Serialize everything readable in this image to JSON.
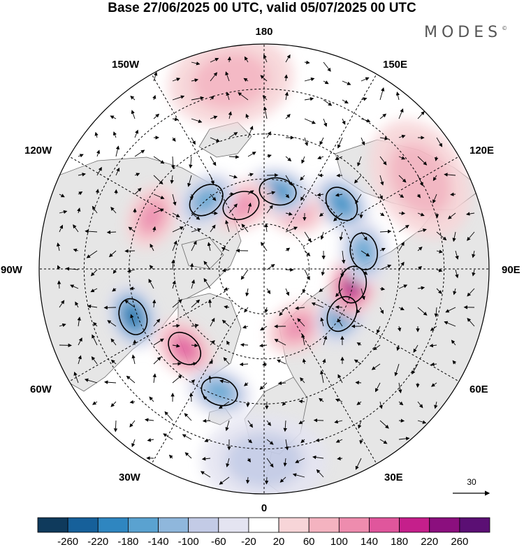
{
  "title": "Base 27/06/2025 00 UTC, valid 05/07/2025 00 UTC",
  "brand": "MODES",
  "brand_mark": "©",
  "longitude_labels": {
    "top": "180",
    "bottom": "0",
    "left": "90W",
    "right": "90E",
    "upper_left": "150W",
    "upper_left2": "120W",
    "upper_right": "150E",
    "upper_right2": "120E",
    "lower_left": "60W",
    "lower_left2": "30W",
    "lower_right": "60E",
    "lower_right2": "30E"
  },
  "vector_reference": "30",
  "colorbar": {
    "labels": [
      "-260",
      "-220",
      "-180",
      "-140",
      "-100",
      "-60",
      "-20",
      "20",
      "60",
      "100",
      "140",
      "180",
      "220",
      "260"
    ],
    "colors": [
      "#0f3a5c",
      "#16609a",
      "#2f86c0",
      "#5aa2d0",
      "#8fb7dc",
      "#c3cbe6",
      "#e4e4f1",
      "#ffffff",
      "#f7d5d8",
      "#f4b3c0",
      "#ee8cae",
      "#e0569c",
      "#c51f8b",
      "#8b0f7e",
      "#5b0f74"
    ]
  },
  "map_colors": {
    "land": "#e6e6e6",
    "ocean": "#ffffff",
    "coast": "#666666",
    "grid": "#000000"
  },
  "anomalies": [
    {
      "lon": -115,
      "r": 0.55,
      "value": 80
    },
    {
      "lon": -70,
      "r": 0.62,
      "value": -200
    },
    {
      "lon": -45,
      "r": 0.5,
      "value": 150
    },
    {
      "lon": -20,
      "r": 0.58,
      "value": -120
    },
    {
      "lon": 30,
      "r": 0.3,
      "value": 90
    },
    {
      "lon": 60,
      "r": 0.4,
      "value": -170
    },
    {
      "lon": 80,
      "r": 0.4,
      "value": 230
    },
    {
      "lon": 100,
      "r": 0.45,
      "value": -130
    },
    {
      "lon": 130,
      "r": 0.45,
      "value": -160
    },
    {
      "lon": 155,
      "r": 0.3,
      "value": 90
    },
    {
      "lon": 170,
      "r": 0.35,
      "value": -160
    },
    {
      "lon": -160,
      "r": 0.3,
      "value": 110
    },
    {
      "lon": -140,
      "r": 0.4,
      "value": -150
    },
    {
      "lon": 0,
      "r": 0.85,
      "value": -60
    },
    {
      "lon": -170,
      "r": 0.85,
      "value": 40
    },
    {
      "lon": 120,
      "r": 0.8,
      "value": 40
    }
  ]
}
